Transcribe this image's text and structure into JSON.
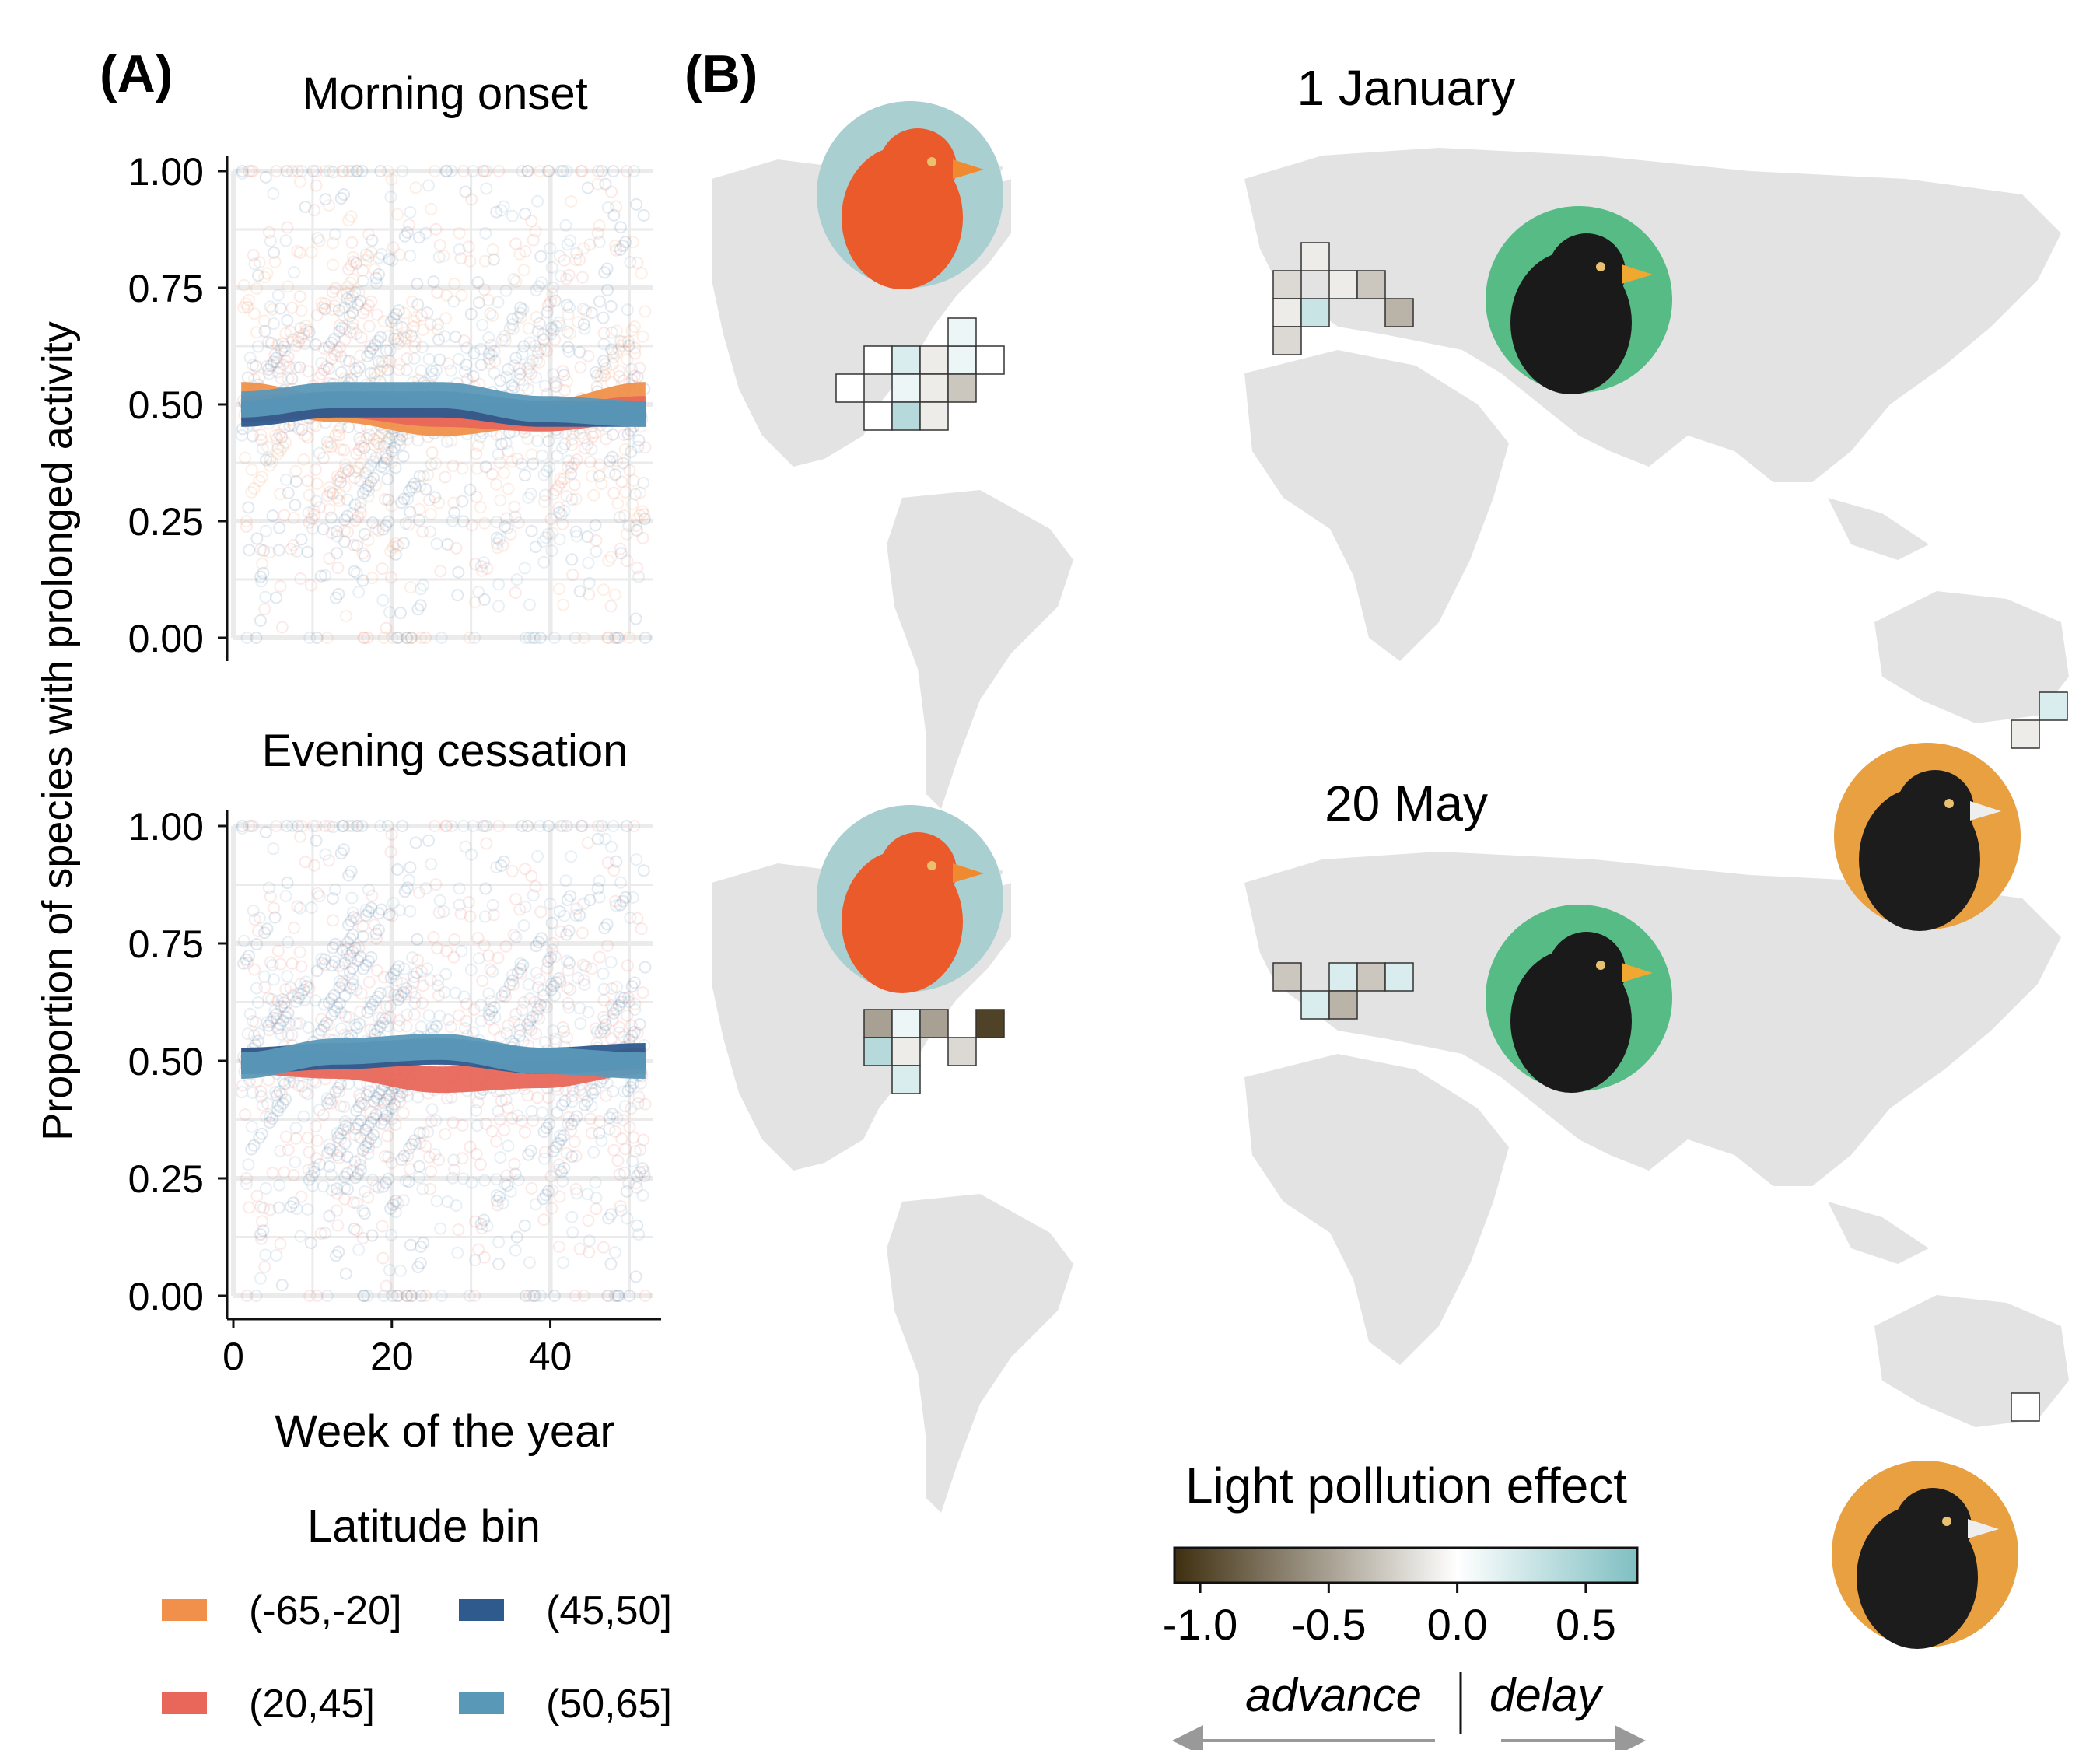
{
  "panel_a": {
    "label": "(A)",
    "ylabel": "Proportion of species with prolonged activity",
    "xlabel": "Week of the year",
    "legend_title": "Latitude bin",
    "legend_items": [
      {
        "label": "(-65,-20]",
        "color": "#f0904a"
      },
      {
        "label": "(45,50]",
        "color": "#2e5a8e"
      },
      {
        "label": "(20,45]",
        "color": "#e8675a"
      },
      {
        "label": "(50,65]",
        "color": "#5a98b8"
      }
    ]
  },
  "panel_b": {
    "label": "(B)",
    "map_titles": [
      "1 January",
      "20 May"
    ],
    "colorbar_title": "Light pollution effect",
    "colorbar_ticks": [
      "-1.0",
      "-0.5",
      "0.0",
      "0.5"
    ],
    "colorbar_range": [
      -1.1,
      0.7
    ],
    "colorbar_colors": {
      "low": "#3f2f10",
      "mid": "#ffffff",
      "high": "#7fbfc2"
    },
    "direction_left": "advance",
    "direction_right": "delay",
    "bird_icons": [
      "cardinal-icon",
      "blackbird-icon",
      "magpie-lark-icon"
    ]
  },
  "chart_data": [
    {
      "type": "line",
      "title": "Morning onset",
      "xlabel": "Week of the year",
      "ylabel": "Proportion of species with prolonged activity",
      "xlim": [
        0,
        53
      ],
      "ylim": [
        0,
        1
      ],
      "xticks": [
        0,
        20,
        40
      ],
      "yticks": [
        "0.00",
        "0.25",
        "0.50",
        "0.75",
        "1.00"
      ],
      "x": [
        1,
        13,
        26,
        39,
        52
      ],
      "series": [
        {
          "name": "(-65,-20]",
          "color": "#f0904a",
          "values": [
            0.52,
            0.49,
            0.46,
            0.48,
            0.52
          ]
        },
        {
          "name": "(20,45]",
          "color": "#e8675a",
          "values": [
            0.49,
            0.5,
            0.48,
            0.47,
            0.49
          ]
        },
        {
          "name": "(45,50]",
          "color": "#2e5a8e",
          "values": [
            0.48,
            0.5,
            0.5,
            0.48,
            0.48
          ]
        },
        {
          "name": "(50,65]",
          "color": "#5a98b8",
          "values": [
            0.5,
            0.52,
            0.52,
            0.49,
            0.48
          ]
        }
      ]
    },
    {
      "type": "line",
      "title": "Evening cessation",
      "xlabel": "Week of the year",
      "ylabel": "Proportion of species with prolonged activity",
      "xlim": [
        0,
        53
      ],
      "ylim": [
        0,
        1
      ],
      "xticks": [
        0,
        20,
        40
      ],
      "yticks": [
        "0.00",
        "0.25",
        "0.50",
        "0.75",
        "1.00"
      ],
      "x": [
        1,
        13,
        26,
        39,
        52
      ],
      "series": [
        {
          "name": "(20,45]",
          "color": "#e8675a",
          "values": [
            0.5,
            0.49,
            0.46,
            0.47,
            0.5
          ]
        },
        {
          "name": "(45,50]",
          "color": "#2e5a8e",
          "values": [
            0.5,
            0.51,
            0.52,
            0.5,
            0.51
          ]
        },
        {
          "name": "(50,65]",
          "color": "#5a98b8",
          "values": [
            0.49,
            0.52,
            0.53,
            0.5,
            0.49
          ]
        }
      ]
    },
    {
      "type": "heatmap",
      "title": "1 January",
      "value_range": [
        -1.1,
        0.7
      ],
      "cells": [
        {
          "region": "north-america",
          "col": 0,
          "row": 1,
          "value": 0.0
        },
        {
          "region": "north-america",
          "col": 1,
          "row": 0,
          "value": 0.0
        },
        {
          "region": "north-america",
          "col": 2,
          "row": 0,
          "value": 0.2
        },
        {
          "region": "north-america",
          "col": 3,
          "row": 0,
          "value": -0.1
        },
        {
          "region": "north-america",
          "col": 4,
          "row": 0,
          "value": 0.1
        },
        {
          "region": "north-america",
          "col": 5,
          "row": 0,
          "value": 0.0
        },
        {
          "region": "north-america",
          "col": 4,
          "row": -1,
          "value": 0.1
        },
        {
          "region": "north-america",
          "col": 2,
          "row": 1,
          "value": 0.1
        },
        {
          "region": "north-america",
          "col": 3,
          "row": 1,
          "value": -0.1
        },
        {
          "region": "north-america",
          "col": 4,
          "row": 1,
          "value": -0.3
        },
        {
          "region": "north-america",
          "col": 1,
          "row": 2,
          "value": 0.0
        },
        {
          "region": "north-america",
          "col": 2,
          "row": 2,
          "value": 0.4
        },
        {
          "region": "north-america",
          "col": 3,
          "row": 2,
          "value": -0.1
        },
        {
          "region": "europe",
          "col": 0,
          "row": 0,
          "value": -0.2
        },
        {
          "region": "europe",
          "col": 1,
          "row": -1,
          "value": -0.1
        },
        {
          "region": "europe",
          "col": 2,
          "row": 0,
          "value": -0.1
        },
        {
          "region": "europe",
          "col": 3,
          "row": 0,
          "value": -0.3
        },
        {
          "region": "europe",
          "col": 0,
          "row": 1,
          "value": -0.1
        },
        {
          "region": "europe",
          "col": 1,
          "row": 1,
          "value": 0.3
        },
        {
          "region": "europe",
          "col": 4,
          "row": 1,
          "value": -0.4
        },
        {
          "region": "europe",
          "col": 0,
          "row": 2,
          "value": -0.2
        },
        {
          "region": "australia",
          "col": 2,
          "row": 0,
          "value": 0.2
        },
        {
          "region": "australia",
          "col": 1,
          "row": 1,
          "value": -0.1
        }
      ]
    },
    {
      "type": "heatmap",
      "title": "20 May",
      "value_range": [
        -1.1,
        0.7
      ],
      "cells": [
        {
          "region": "north-america",
          "col": 1,
          "row": 0,
          "value": -0.5
        },
        {
          "region": "north-america",
          "col": 2,
          "row": 0,
          "value": 0.1
        },
        {
          "region": "north-america",
          "col": 3,
          "row": 0,
          "value": -0.5
        },
        {
          "region": "north-america",
          "col": 5,
          "row": 0,
          "value": -1.0
        },
        {
          "region": "north-america",
          "col": 1,
          "row": 1,
          "value": 0.4
        },
        {
          "region": "north-america",
          "col": 2,
          "row": 1,
          "value": -0.1
        },
        {
          "region": "north-america",
          "col": 4,
          "row": 1,
          "value": -0.2
        },
        {
          "region": "north-america",
          "col": 2,
          "row": 2,
          "value": 0.2
        },
        {
          "region": "europe",
          "col": 0,
          "row": 0,
          "value": -0.3
        },
        {
          "region": "europe",
          "col": 2,
          "row": 0,
          "value": 0.2
        },
        {
          "region": "europe",
          "col": 3,
          "row": 0,
          "value": -0.3
        },
        {
          "region": "europe",
          "col": 1,
          "row": 1,
          "value": 0.2
        },
        {
          "region": "europe",
          "col": 2,
          "row": 1,
          "value": -0.4
        },
        {
          "region": "europe",
          "col": 4,
          "row": 0,
          "value": 0.2
        },
        {
          "region": "australia",
          "col": 1,
          "row": 1,
          "value": 0.0
        }
      ]
    }
  ]
}
